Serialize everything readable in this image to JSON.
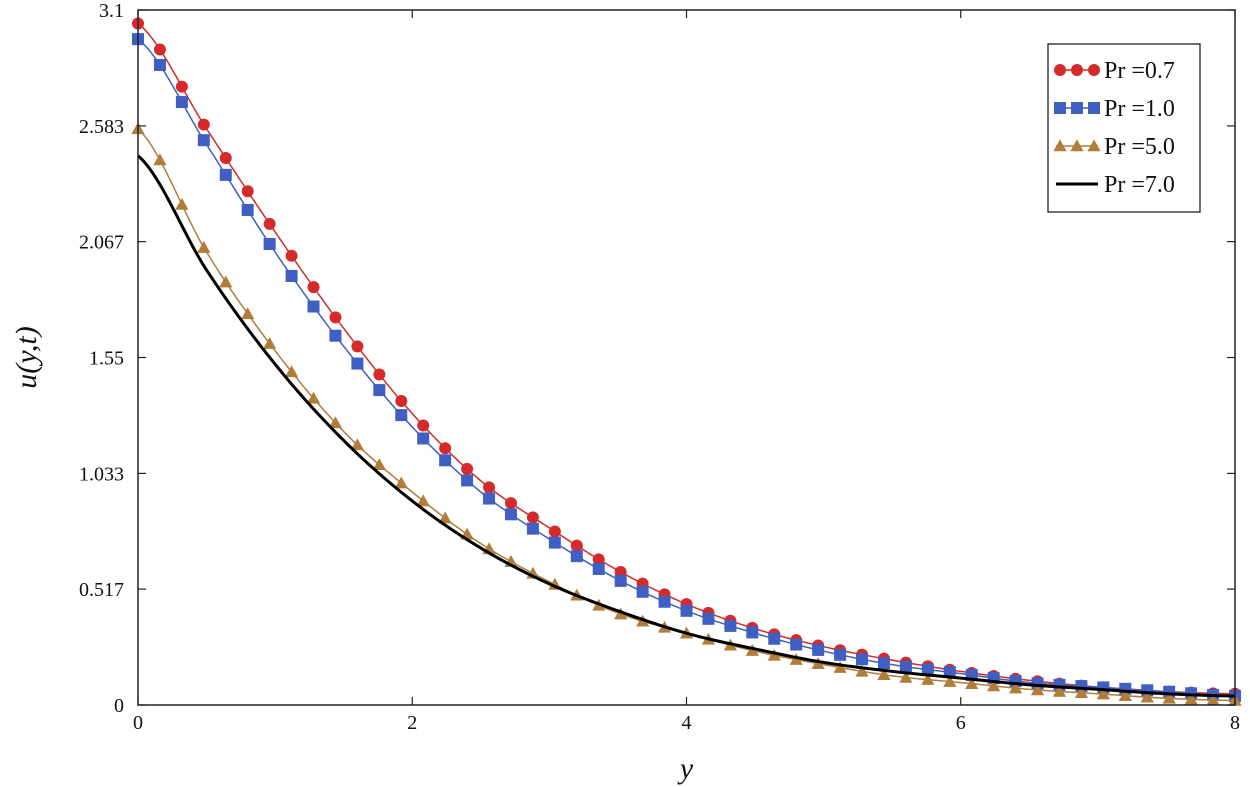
{
  "chart_data": {
    "type": "line",
    "title": "",
    "xlabel": "y",
    "ylabel": "u(y,t)",
    "xlim": [
      0,
      8
    ],
    "ylim": [
      0,
      3.1
    ],
    "x_ticks": [
      "0",
      "2",
      "4",
      "6",
      "8"
    ],
    "y_ticks": [
      "0",
      "0.517",
      "1.033",
      "1.55",
      "2.067",
      "2.583",
      "3.1"
    ],
    "grid": false,
    "legend_position": "top-right",
    "series": [
      {
        "name": "Pr =0.7",
        "color": "#d42a2a",
        "marker": "circle",
        "x": [
          0,
          0.5,
          1,
          1.5,
          2,
          2.5,
          3,
          3.5,
          4,
          4.5,
          5,
          5.5,
          6,
          6.5,
          7,
          7.5,
          8
        ],
        "y": [
          3.04,
          2.57,
          2.11,
          1.68,
          1.3,
          1.0,
          0.79,
          0.6,
          0.45,
          0.34,
          0.26,
          0.2,
          0.15,
          0.11,
          0.08,
          0.06,
          0.05
        ]
      },
      {
        "name": "Pr =1.0",
        "color": "#3f5fc2",
        "marker": "square",
        "x": [
          0,
          0.5,
          1,
          1.5,
          2,
          2.5,
          3,
          3.5,
          4,
          4.5,
          5,
          5.5,
          6,
          6.5,
          7,
          7.5,
          8
        ],
        "y": [
          2.97,
          2.5,
          2.02,
          1.6,
          1.24,
          0.95,
          0.74,
          0.56,
          0.42,
          0.32,
          0.24,
          0.18,
          0.14,
          0.1,
          0.08,
          0.06,
          0.04
        ]
      },
      {
        "name": "Pr =5.0",
        "color": "#b07d3a",
        "marker": "triangle",
        "x": [
          0,
          0.5,
          1,
          1.5,
          2,
          2.5,
          3,
          3.5,
          4,
          4.5,
          5,
          5.5,
          6,
          6.5,
          7,
          7.5,
          8
        ],
        "y": [
          2.57,
          2.02,
          1.58,
          1.22,
          0.95,
          0.72,
          0.55,
          0.41,
          0.32,
          0.24,
          0.18,
          0.13,
          0.1,
          0.07,
          0.05,
          0.03,
          0.02
        ]
      },
      {
        "name": "Pr =7.0",
        "color": "#000000",
        "marker": "none",
        "x": [
          0,
          0.5,
          1,
          1.5,
          2,
          2.5,
          3,
          3.5,
          4,
          4.5,
          5,
          5.5,
          6,
          6.5,
          7,
          7.5,
          8
        ],
        "y": [
          2.45,
          1.94,
          1.52,
          1.18,
          0.91,
          0.7,
          0.54,
          0.42,
          0.32,
          0.25,
          0.19,
          0.15,
          0.12,
          0.09,
          0.07,
          0.05,
          0.04
        ]
      }
    ]
  }
}
